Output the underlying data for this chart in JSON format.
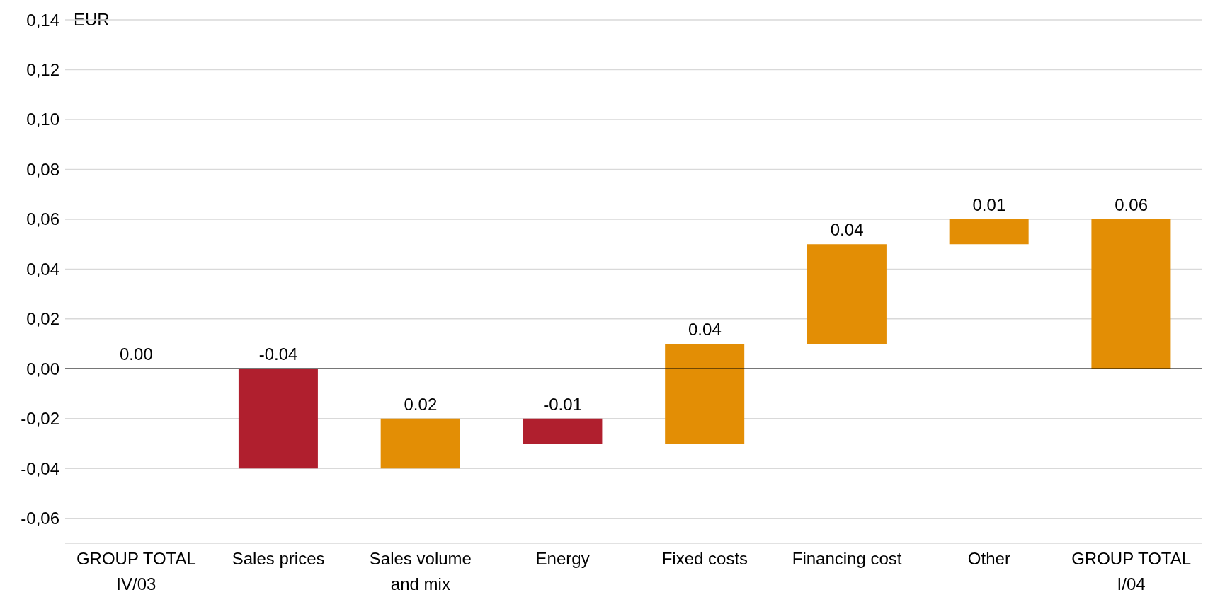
{
  "chart_data": {
    "type": "bar",
    "ylabel": "EUR",
    "categories": [
      "GROUP TOTAL IV/03",
      "Sales prices",
      "Sales volume and mix",
      "Energy",
      "Fixed costs",
      "Financing cost",
      "Other",
      "GROUP TOTAL I/04"
    ],
    "values": [
      0,
      -0.04,
      0.02,
      -0.01,
      0.04,
      0.04,
      0.01,
      0.06
    ],
    "base": [
      null,
      0,
      -0.04,
      -0.02,
      -0.03,
      0.01,
      0.05,
      null
    ],
    "colors": [
      "#e38e05",
      "#b01f2e",
      "#e38e05",
      "#b01f2e",
      "#e38e05",
      "#e38e05",
      "#e38e05",
      "#e38e05"
    ],
    "value_labels": [
      "0.00",
      "-0.04",
      "0.02",
      "-0.01",
      "0.04",
      "0.04",
      "0.01",
      "0.06"
    ],
    "ylim": [
      -0.07,
      0.14
    ],
    "yticks": [
      {
        "value": -0.06,
        "label": "-0,06"
      },
      {
        "value": -0.04,
        "label": "-0,04"
      },
      {
        "value": -0.02,
        "label": "-0,02"
      },
      {
        "value": 0,
        "label": "0,00"
      },
      {
        "value": 0.02,
        "label": "0,02"
      },
      {
        "value": 0.04,
        "label": "0,04"
      },
      {
        "value": 0.06,
        "label": "0,06"
      },
      {
        "value": 0.08,
        "label": "0,08"
      },
      {
        "value": 0.1,
        "label": "0,10"
      },
      {
        "value": 0.12,
        "label": "0,12"
      },
      {
        "value": 0.14,
        "label": "0,14"
      }
    ],
    "grid": "y",
    "ref_lines": [
      {
        "axis": "y",
        "value": 0,
        "color": "#000000"
      }
    ]
  }
}
